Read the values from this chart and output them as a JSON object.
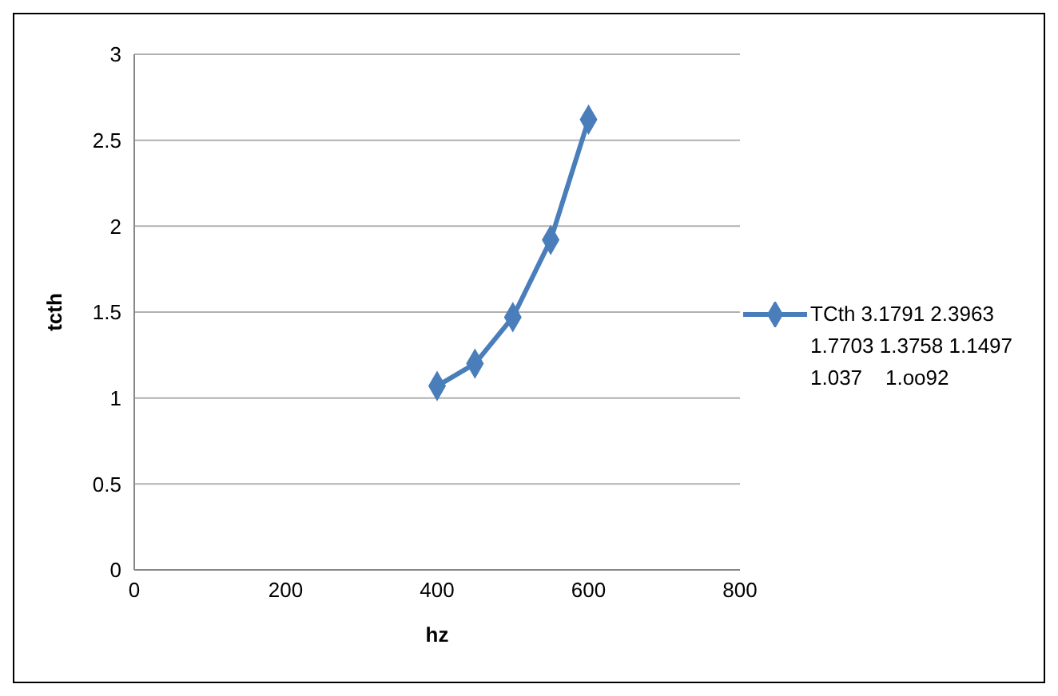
{
  "chart_data": {
    "type": "line",
    "xlabel": "hz",
    "ylabel": "tcth",
    "x": [
      400,
      450,
      500,
      550,
      600
    ],
    "series": [
      {
        "name": "TCth 3.1791 2.3963 1.7703 1.3758 1.1497 1.037    1.oo92",
        "color": "#4a7ebb",
        "values": [
          1.07,
          1.2,
          1.47,
          1.92,
          2.62
        ]
      }
    ],
    "xlim": [
      0,
      800
    ],
    "xticks": [
      0,
      200,
      400,
      600,
      800
    ],
    "ylim": [
      0,
      3
    ],
    "yticks": [
      0,
      0.5,
      1,
      1.5,
      2,
      2.5,
      3
    ],
    "grid": "y",
    "legend": "right",
    "marker": "diamond",
    "line_style": "solid"
  }
}
